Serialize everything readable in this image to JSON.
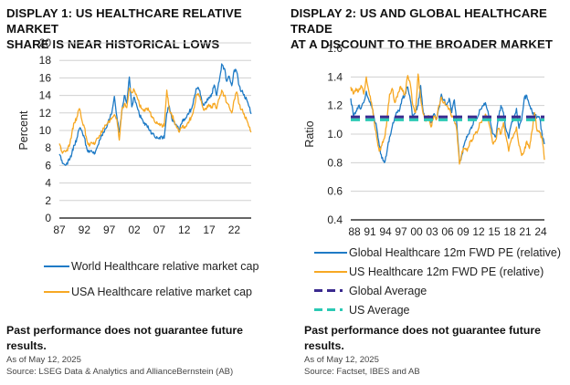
{
  "displays": [
    {
      "title_line1": "DISPLAY 1: US HEALTHCARE RELATIVE MARKET",
      "title_line2": "SHARE IS NEAR HISTORICAL LOWS",
      "legend": [
        {
          "label": "World Healthcare relative market cap",
          "color": "#1f7bc6",
          "style": "solid"
        },
        {
          "label": "USA Healthcare relative market cap",
          "color": "#f7a823",
          "style": "solid"
        }
      ],
      "disclaimer_line1": "Past performance does not guarantee future",
      "disclaimer_line2": "results.",
      "as_of": "As of May 12, 2025",
      "source": "Source: LSEG Data & Analytics and AllianceBernstein (AB)"
    },
    {
      "title_line1": "DISPLAY 2: US AND GLOBAL HEALTHCARE TRADE",
      "title_line2": "AT A DISCOUNT TO THE BROADER MARKET",
      "legend": [
        {
          "label": "Global Healthcare 12m FWD PE (relative)",
          "color": "#1f7bc6",
          "style": "solid"
        },
        {
          "label": "US Healthcare 12m FWD PE (relative)",
          "color": "#f7a823",
          "style": "solid"
        },
        {
          "label": "Global Average",
          "color": "#3b2a8f",
          "style": "dashed"
        },
        {
          "label": "US Average",
          "color": "#2bc9b4",
          "style": "dashed"
        }
      ],
      "disclaimer_line1": "Past performance does not guarantee future",
      "disclaimer_line2": "results.",
      "as_of": "As of May 12, 2025",
      "source": "Source: Factset, IBES and AB"
    }
  ],
  "chart_data": [
    {
      "type": "line",
      "title": "DISPLAY 1: US HEALTHCARE RELATIVE MARKET SHARE IS NEAR HISTORICAL LOWS",
      "xlabel": "",
      "ylabel": "Percent",
      "xlim": [
        1987,
        2025.4
      ],
      "ylim": [
        0,
        20
      ],
      "yticks": [
        0,
        2,
        4,
        6,
        8,
        10,
        12,
        14,
        16,
        18,
        20
      ],
      "xtick_values": [
        1987,
        1992,
        1997,
        2002,
        2007,
        2012,
        2017,
        2022
      ],
      "xtick_labels": [
        "87",
        "92",
        "97",
        "02",
        "07",
        "12",
        "17",
        "22"
      ],
      "grid": true,
      "legend_position": "bottom",
      "series": [
        {
          "name": "World Healthcare relative market cap",
          "color": "#1f7bc6",
          "x": [
            1987.0,
            1987.5,
            1988.0,
            1988.5,
            1989.0,
            1989.5,
            1990.0,
            1990.5,
            1991.0,
            1991.5,
            1992.0,
            1992.5,
            1993.0,
            1993.5,
            1994.0,
            1994.5,
            1995.0,
            1995.5,
            1996.0,
            1996.5,
            1997.0,
            1997.5,
            1998.0,
            1998.5,
            1999.0,
            1999.5,
            2000.0,
            2000.5,
            2001.0,
            2001.5,
            2002.0,
            2002.5,
            2003.0,
            2003.5,
            2004.0,
            2004.5,
            2005.0,
            2005.5,
            2006.0,
            2006.5,
            2007.0,
            2007.5,
            2008.0,
            2008.5,
            2009.0,
            2009.5,
            2010.0,
            2010.5,
            2011.0,
            2011.5,
            2012.0,
            2012.5,
            2013.0,
            2013.5,
            2014.0,
            2014.5,
            2015.0,
            2015.5,
            2016.0,
            2016.5,
            2017.0,
            2017.5,
            2018.0,
            2018.5,
            2019.0,
            2019.5,
            2020.0,
            2020.5,
            2021.0,
            2021.5,
            2022.0,
            2022.5,
            2023.0,
            2023.5,
            2024.0,
            2024.5,
            2025.0,
            2025.4
          ],
          "values": [
            7.3,
            6.6,
            6.1,
            6.3,
            6.6,
            7.4,
            8.3,
            9.1,
            10.2,
            10.0,
            9.2,
            7.9,
            7.5,
            7.6,
            7.3,
            8.0,
            8.9,
            9.4,
            9.8,
            10.4,
            11.2,
            12.0,
            13.9,
            11.6,
            9.8,
            12.2,
            14.0,
            13.1,
            16.1,
            12.7,
            13.8,
            12.8,
            11.8,
            11.4,
            10.9,
            10.6,
            10.0,
            9.7,
            9.4,
            9.3,
            9.2,
            9.3,
            9.1,
            12.0,
            12.8,
            11.4,
            11.0,
            10.5,
            10.0,
            10.8,
            11.3,
            11.6,
            12.1,
            12.5,
            13.8,
            14.8,
            14.6,
            13.4,
            12.9,
            13.3,
            13.7,
            14.2,
            15.2,
            14.0,
            15.6,
            17.6,
            17.1,
            15.6,
            16.2,
            15.1,
            16.9,
            16.7,
            15.1,
            14.5,
            14.1,
            13.5,
            12.7,
            11.9
          ]
        },
        {
          "name": "USA Healthcare relative market cap",
          "color": "#f7a823",
          "x": [
            1987.0,
            1987.5,
            1988.0,
            1988.5,
            1989.0,
            1989.5,
            1990.0,
            1990.5,
            1991.0,
            1991.5,
            1992.0,
            1992.5,
            1993.0,
            1993.5,
            1994.0,
            1994.5,
            1995.0,
            1995.5,
            1996.0,
            1996.5,
            1997.0,
            1997.5,
            1998.0,
            1998.5,
            1999.0,
            1999.5,
            2000.0,
            2000.5,
            2001.0,
            2001.5,
            2002.0,
            2002.5,
            2003.0,
            2003.5,
            2004.0,
            2004.5,
            2005.0,
            2005.5,
            2006.0,
            2006.5,
            2007.0,
            2007.5,
            2008.0,
            2008.5,
            2009.0,
            2009.5,
            2010.0,
            2010.5,
            2011.0,
            2011.5,
            2012.0,
            2012.5,
            2013.0,
            2013.5,
            2014.0,
            2014.5,
            2015.0,
            2015.5,
            2016.0,
            2016.5,
            2017.0,
            2017.5,
            2018.0,
            2018.5,
            2019.0,
            2019.5,
            2020.0,
            2020.5,
            2021.0,
            2021.5,
            2022.0,
            2022.5,
            2023.0,
            2023.5,
            2024.0,
            2024.5,
            2025.0,
            2025.4
          ],
          "values": [
            8.5,
            7.6,
            7.7,
            7.8,
            8.2,
            9.7,
            10.9,
            11.5,
            12.5,
            11.2,
            10.4,
            8.9,
            8.2,
            8.6,
            8.4,
            9.1,
            9.4,
            9.8,
            10.3,
            10.7,
            10.9,
            11.4,
            11.8,
            11.3,
            8.9,
            12.4,
            13.0,
            12.6,
            14.8,
            14.3,
            14.6,
            13.9,
            13.0,
            12.5,
            12.4,
            12.5,
            12.2,
            11.6,
            11.1,
            11.0,
            10.8,
            10.6,
            10.5,
            14.6,
            12.4,
            11.8,
            11.1,
            10.3,
            9.8,
            10.3,
            10.4,
            10.6,
            11.1,
            11.6,
            12.6,
            14.1,
            13.9,
            13.1,
            12.3,
            12.5,
            12.9,
            12.7,
            13.1,
            12.5,
            13.6,
            14.6,
            14.0,
            13.2,
            12.7,
            12.0,
            13.5,
            14.4,
            13.0,
            12.4,
            11.9,
            11.2,
            10.4,
            9.8
          ]
        }
      ]
    },
    {
      "type": "line",
      "title": "DISPLAY 2: US AND GLOBAL HEALTHCARE TRADE AT A DISCOUNT TO THE BROADER MARKET",
      "xlabel": "",
      "ylabel": "Ratio",
      "xlim": [
        1988,
        2025.4
      ],
      "ylim": [
        0.4,
        1.6
      ],
      "yticks": [
        0.4,
        0.6,
        0.8,
        1.0,
        1.2,
        1.4,
        1.6
      ],
      "xtick_values": [
        1988,
        1991,
        1994,
        1997,
        2000,
        2003,
        2006,
        2009,
        2012,
        2015,
        2018,
        2021,
        2024
      ],
      "xtick_labels": [
        "88",
        "91",
        "94",
        "97",
        "00",
        "03",
        "06",
        "09",
        "12",
        "15",
        "18",
        "21",
        "24"
      ],
      "grid": true,
      "legend_position": "bottom",
      "series": [
        {
          "name": "Global Healthcare 12m FWD PE (relative)",
          "color": "#1f7bc6",
          "x": [
            1988.0,
            1988.5,
            1989.0,
            1989.5,
            1990.0,
            1990.5,
            1991.0,
            1991.5,
            1992.0,
            1992.5,
            1993.0,
            1993.5,
            1994.0,
            1994.5,
            1995.0,
            1995.5,
            1996.0,
            1996.5,
            1997.0,
            1997.5,
            1998.0,
            1998.5,
            1999.0,
            1999.5,
            2000.0,
            2000.5,
            2001.0,
            2001.5,
            2002.0,
            2002.5,
            2003.0,
            2003.5,
            2004.0,
            2004.5,
            2005.0,
            2005.5,
            2006.0,
            2006.5,
            2007.0,
            2007.5,
            2008.0,
            2008.5,
            2009.0,
            2009.5,
            2010.0,
            2010.5,
            2011.0,
            2011.5,
            2012.0,
            2012.5,
            2013.0,
            2013.5,
            2014.0,
            2014.5,
            2015.0,
            2015.5,
            2016.0,
            2016.5,
            2017.0,
            2017.5,
            2018.0,
            2018.5,
            2019.0,
            2019.5,
            2020.0,
            2020.5,
            2021.0,
            2021.5,
            2022.0,
            2022.5,
            2023.0,
            2023.5,
            2024.0,
            2024.5,
            2025.0,
            2025.4
          ],
          "values": [
            1.25,
            1.13,
            1.16,
            1.2,
            1.18,
            1.22,
            1.3,
            1.24,
            1.2,
            1.12,
            1.05,
            0.92,
            0.83,
            0.8,
            0.88,
            0.98,
            1.05,
            1.12,
            1.15,
            1.18,
            1.25,
            1.28,
            1.33,
            1.24,
            1.12,
            1.16,
            1.2,
            1.34,
            1.15,
            1.1,
            1.12,
            1.08,
            1.14,
            1.1,
            1.18,
            1.28,
            1.24,
            1.2,
            1.25,
            1.15,
            1.24,
            1.06,
            0.8,
            0.86,
            0.94,
            0.98,
            1.03,
            1.06,
            1.1,
            1.12,
            1.17,
            1.2,
            1.22,
            1.16,
            1.08,
            1.0,
            0.98,
            1.1,
            1.2,
            1.15,
            1.03,
            0.97,
            1.07,
            1.12,
            1.18,
            1.04,
            1.1,
            1.25,
            1.27,
            1.2,
            1.16,
            1.13,
            1.12,
            1.11,
            0.98,
            0.93
          ]
        },
        {
          "name": "US Healthcare 12m FWD PE (relative)",
          "color": "#f7a823",
          "x": [
            1988.0,
            1988.5,
            1989.0,
            1989.5,
            1990.0,
            1990.5,
            1991.0,
            1991.5,
            1992.0,
            1992.5,
            1993.0,
            1993.5,
            1994.0,
            1994.5,
            1995.0,
            1995.5,
            1996.0,
            1996.5,
            1997.0,
            1997.5,
            1998.0,
            1998.5,
            1999.0,
            1999.5,
            2000.0,
            2000.5,
            2001.0,
            2001.5,
            2002.0,
            2002.5,
            2003.0,
            2003.5,
            2004.0,
            2004.5,
            2005.0,
            2005.5,
            2006.0,
            2006.5,
            2007.0,
            2007.5,
            2008.0,
            2008.5,
            2009.0,
            2009.5,
            2010.0,
            2010.5,
            2011.0,
            2011.5,
            2012.0,
            2012.5,
            2013.0,
            2013.5,
            2014.0,
            2014.5,
            2015.0,
            2015.5,
            2016.0,
            2016.5,
            2017.0,
            2017.5,
            2018.0,
            2018.5,
            2019.0,
            2019.5,
            2020.0,
            2020.5,
            2021.0,
            2021.5,
            2022.0,
            2022.5,
            2023.0,
            2023.5,
            2024.0,
            2024.5,
            2025.0,
            2025.4
          ],
          "values": [
            1.33,
            1.28,
            1.32,
            1.3,
            1.34,
            1.28,
            1.4,
            1.3,
            1.22,
            1.1,
            0.98,
            0.88,
            0.92,
            0.97,
            1.1,
            1.28,
            1.32,
            1.22,
            1.26,
            1.33,
            1.3,
            1.28,
            1.41,
            1.35,
            1.2,
            1.15,
            1.42,
            1.25,
            1.14,
            1.09,
            1.13,
            1.05,
            1.12,
            1.1,
            1.2,
            1.26,
            1.22,
            1.2,
            1.18,
            1.12,
            1.1,
            1.02,
            0.79,
            0.88,
            0.9,
            0.88,
            0.95,
            0.96,
            1.0,
            1.02,
            1.08,
            1.1,
            1.14,
            1.11,
            1.03,
            0.93,
            0.96,
            1.04,
            1.0,
            1.08,
            0.98,
            0.88,
            0.96,
            1.0,
            1.05,
            0.92,
            0.85,
            0.88,
            0.95,
            0.9,
            1.02,
            1.15,
            1.02,
            1.01,
            0.96,
            0.82
          ]
        },
        {
          "name": "Global Average",
          "color": "#3b2a8f",
          "style": "dashed",
          "x": [
            1988,
            2025.4
          ],
          "values": [
            1.12,
            1.12
          ]
        },
        {
          "name": "US Average",
          "color": "#2bc9b4",
          "style": "dashed",
          "x": [
            1988,
            2025.4
          ],
          "values": [
            1.1,
            1.1
          ]
        }
      ]
    }
  ]
}
